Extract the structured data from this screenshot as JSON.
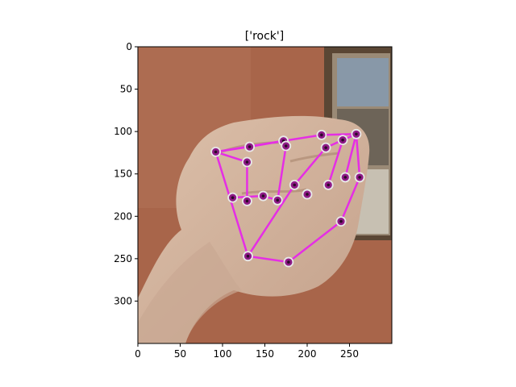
{
  "figure": {
    "title": "['rock']",
    "x_axis": {
      "ticks": [
        0,
        50,
        100,
        150,
        200,
        250
      ],
      "range": [
        0,
        300
      ]
    },
    "y_axis": {
      "ticks": [
        0,
        50,
        100,
        150,
        200,
        250,
        300
      ],
      "range": [
        0,
        350
      ],
      "inverted": true
    }
  },
  "image_content": {
    "description_icon": "hand-fist-photo",
    "background_color": "#a8654a",
    "wall_color_light": "#b27458",
    "skin_color": "#d2b29c",
    "skin_shadow": "#b89480",
    "frame_color": "#5a4634"
  },
  "landmarks": {
    "line_color": "#e52ee5",
    "point_fill": "#8e1a86",
    "point_ring": "#e8e8e8",
    "points": [
      [
        130,
        247
      ],
      [
        178,
        254
      ],
      [
        240,
        206
      ],
      [
        262,
        154
      ],
      [
        245,
        154
      ],
      [
        225,
        163
      ],
      [
        200,
        174
      ],
      [
        185,
        163
      ],
      [
        165,
        181
      ],
      [
        148,
        176
      ],
      [
        129,
        182
      ],
      [
        112,
        178
      ],
      [
        92,
        124
      ],
      [
        129,
        136
      ],
      [
        172,
        111
      ],
      [
        175,
        117
      ],
      [
        132,
        118
      ],
      [
        217,
        104
      ],
      [
        222,
        119
      ],
      [
        242,
        110
      ],
      [
        258,
        103
      ]
    ],
    "edges": [
      [
        12,
        0
      ],
      [
        0,
        1
      ],
      [
        1,
        2
      ],
      [
        2,
        3
      ],
      [
        0,
        7
      ],
      [
        7,
        18
      ],
      [
        12,
        16
      ],
      [
        16,
        14
      ],
      [
        14,
        17
      ],
      [
        17,
        20
      ],
      [
        12,
        13
      ],
      [
        13,
        10
      ],
      [
        15,
        8
      ],
      [
        15,
        14
      ],
      [
        18,
        19
      ],
      [
        19,
        20
      ],
      [
        20,
        3
      ],
      [
        5,
        19
      ],
      [
        4,
        20
      ],
      [
        11,
        9
      ],
      [
        9,
        8
      ],
      [
        12,
        14
      ]
    ]
  }
}
